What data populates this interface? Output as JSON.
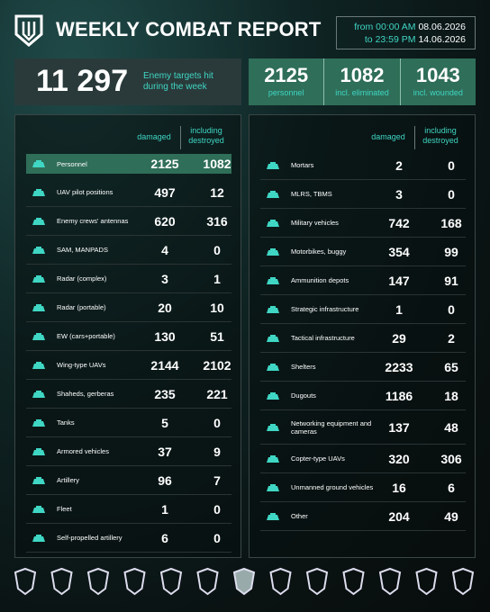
{
  "header": {
    "title": "WEEKLY COMBAT REPORT",
    "date": {
      "from_label": "from 00:00 AM",
      "from_date": "08.06.2026",
      "to_label": "to 23:59 PM",
      "to_date": "14.06.2026"
    }
  },
  "summary": {
    "total": "11 297",
    "total_label": "Enemy targets hit during the week",
    "stats": [
      {
        "value": 2125,
        "label": "personnel"
      },
      {
        "value": 1082,
        "label": "incl. eliminated"
      },
      {
        "value": 1043,
        "label": "incl. wounded"
      }
    ]
  },
  "columns": {
    "damaged": "damaged",
    "destroyed": "including destroyed"
  },
  "left": {
    "rows": [
      {
        "label": "Personnel",
        "damaged": 2125,
        "destroyed": 1082
      },
      {
        "label": "UAV pilot positions",
        "damaged": 497,
        "destroyed": 12
      },
      {
        "label": "Enemy crews' antennas",
        "damaged": 620,
        "destroyed": 316
      },
      {
        "label": "SAM, MANPADS",
        "damaged": 4,
        "destroyed": 0
      },
      {
        "label": "Radar (complex)",
        "damaged": 3,
        "destroyed": 1
      },
      {
        "label": "Radar (portable)",
        "damaged": 20,
        "destroyed": 10
      },
      {
        "label": "EW (cars+portable)",
        "damaged": 130,
        "destroyed": 51
      },
      {
        "label": "Wing-type UAVs",
        "damaged": 2144,
        "destroyed": 2102
      },
      {
        "label": "Shaheds, gerberas",
        "damaged": 235,
        "destroyed": 221
      },
      {
        "label": "Tanks",
        "damaged": 5,
        "destroyed": 0
      },
      {
        "label": "Armored vehicles",
        "damaged": 37,
        "destroyed": 9
      },
      {
        "label": "Artillery",
        "damaged": 96,
        "destroyed": 7
      },
      {
        "label": "Fleet",
        "damaged": 1,
        "destroyed": 0
      },
      {
        "label": "Self-propelled artillery",
        "damaged": 6,
        "destroyed": 0
      }
    ]
  },
  "right": {
    "rows": [
      {
        "label": "Mortars",
        "damaged": 2,
        "destroyed": 0
      },
      {
        "label": "MLRS, TBMS",
        "damaged": 3,
        "destroyed": 0
      },
      {
        "label": "Military vehicles",
        "damaged": 742,
        "destroyed": 168
      },
      {
        "label": "Motorbikes, buggy",
        "damaged": 354,
        "destroyed": 99
      },
      {
        "label": "Ammunition depots",
        "damaged": 147,
        "destroyed": 91
      },
      {
        "label": "Strategic infrastructure",
        "damaged": 1,
        "destroyed": 0
      },
      {
        "label": "Tactical infrastructure",
        "damaged": 29,
        "destroyed": 2
      },
      {
        "label": "Shelters",
        "damaged": 2233,
        "destroyed": 65
      },
      {
        "label": "Dugouts",
        "damaged": 1186,
        "destroyed": 18
      },
      {
        "label": "Networking equipment and cameras",
        "damaged": 137,
        "destroyed": 48
      },
      {
        "label": "Copter-type UAVs",
        "damaged": 320,
        "destroyed": 306
      },
      {
        "label": "Unmanned ground vehicles",
        "damaged": 16,
        "destroyed": 6
      },
      {
        "label": "Other",
        "damaged": 204,
        "destroyed": 49
      }
    ]
  }
}
